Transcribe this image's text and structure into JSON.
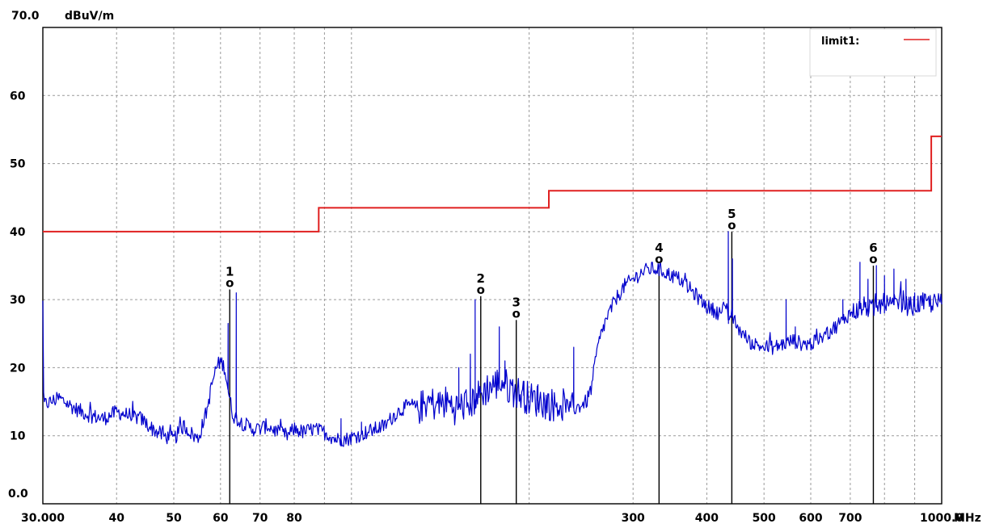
{
  "chart_data": {
    "type": "line",
    "x_scale": "log",
    "xlim": [
      30,
      1000
    ],
    "ylim": [
      0,
      70
    ],
    "xunit": "MHz",
    "yunit": "dBuV/m",
    "ymax_label": "70.0",
    "ymin_label": "0.0",
    "y_ticks": [
      "10",
      "20",
      "30",
      "40",
      "50",
      "60"
    ],
    "x_ticks": [
      "30.000",
      "40",
      "50",
      "60",
      "70",
      "80",
      "300",
      "400",
      "500",
      "600",
      "700",
      "1000.0"
    ],
    "grid": true,
    "legend": {
      "label": "limit1:",
      "position": "top-right",
      "color": "#e02020"
    },
    "colors": {
      "trace": "#0000cc",
      "limit": "#e02020",
      "grid": "#9a9a9a",
      "marker": "#000000"
    },
    "limit_line": {
      "name": "limit1",
      "points": [
        [
          30,
          40
        ],
        [
          88,
          40
        ],
        [
          88,
          43.5
        ],
        [
          216,
          43.5
        ],
        [
          216,
          46
        ],
        [
          960,
          46
        ],
        [
          960,
          54
        ],
        [
          1000,
          54
        ]
      ]
    },
    "trace": {
      "points": [
        [
          30,
          14.5
        ],
        [
          32,
          15.5
        ],
        [
          34,
          14
        ],
        [
          36,
          13
        ],
        [
          38,
          12.5
        ],
        [
          40,
          13.5
        ],
        [
          42,
          13
        ],
        [
          44,
          12.5
        ],
        [
          46,
          11
        ],
        [
          48,
          10
        ],
        [
          50,
          9.5
        ],
        [
          52,
          11.5
        ],
        [
          54,
          10
        ],
        [
          55,
          9.5
        ],
        [
          57,
          14
        ],
        [
          58,
          17.5
        ],
        [
          59,
          20
        ],
        [
          60,
          21
        ],
        [
          61,
          20
        ],
        [
          62,
          16
        ],
        [
          63,
          13
        ],
        [
          65,
          12
        ],
        [
          68,
          11
        ],
        [
          70,
          11
        ],
        [
          72,
          11.5
        ],
        [
          75,
          10.5
        ],
        [
          78,
          10
        ],
        [
          80,
          11
        ],
        [
          83,
          10.5
        ],
        [
          86,
          11
        ],
        [
          90,
          10.5
        ],
        [
          94,
          9.5
        ],
        [
          98,
          9.5
        ],
        [
          102,
          10
        ],
        [
          106,
          10.5
        ],
        [
          110,
          11
        ],
        [
          114,
          11.5
        ],
        [
          118,
          13
        ],
        [
          122,
          14
        ],
        [
          126,
          14.5
        ],
        [
          130,
          14
        ],
        [
          135,
          15
        ],
        [
          140,
          14.5
        ],
        [
          145,
          15
        ],
        [
          150,
          14
        ],
        [
          155,
          14.5
        ],
        [
          160,
          15
        ],
        [
          165,
          16
        ],
        [
          170,
          17
        ],
        [
          175,
          17.5
        ],
        [
          180,
          18
        ],
        [
          185,
          17
        ],
        [
          190,
          16.5
        ],
        [
          195,
          16
        ],
        [
          200,
          15.5
        ],
        [
          210,
          15
        ],
        [
          220,
          14.5
        ],
        [
          230,
          14.5
        ],
        [
          240,
          14
        ],
        [
          245,
          14.5
        ],
        [
          250,
          15
        ],
        [
          255,
          17
        ],
        [
          260,
          22
        ],
        [
          265,
          25
        ],
        [
          270,
          27
        ],
        [
          280,
          30
        ],
        [
          290,
          32
        ],
        [
          300,
          33
        ],
        [
          310,
          34
        ],
        [
          320,
          34.5
        ],
        [
          330,
          34.5
        ],
        [
          340,
          34
        ],
        [
          350,
          33.5
        ],
        [
          360,
          33
        ],
        [
          370,
          32
        ],
        [
          380,
          31
        ],
        [
          390,
          30
        ],
        [
          400,
          29
        ],
        [
          410,
          28.5
        ],
        [
          420,
          28
        ],
        [
          430,
          29
        ],
        [
          435,
          27
        ],
        [
          440,
          28
        ],
        [
          450,
          26
        ],
        [
          460,
          25
        ],
        [
          470,
          24
        ],
        [
          480,
          23.5
        ],
        [
          500,
          23
        ],
        [
          520,
          23
        ],
        [
          540,
          23.5
        ],
        [
          560,
          24
        ],
        [
          580,
          23.5
        ],
        [
          600,
          23.5
        ],
        [
          620,
          24
        ],
        [
          640,
          25
        ],
        [
          660,
          26
        ],
        [
          680,
          27
        ],
        [
          700,
          28
        ],
        [
          720,
          28.5
        ],
        [
          740,
          29
        ],
        [
          760,
          28.5
        ],
        [
          780,
          29
        ],
        [
          800,
          29.5
        ],
        [
          820,
          29
        ],
        [
          840,
          29.5
        ],
        [
          860,
          29.5
        ],
        [
          880,
          29
        ],
        [
          900,
          29
        ],
        [
          920,
          29.5
        ],
        [
          940,
          29.5
        ],
        [
          960,
          29.5
        ],
        [
          980,
          29.5
        ],
        [
          1000,
          29.5
        ]
      ],
      "spikes": [
        [
          61.8,
          26.5
        ],
        [
          63.8,
          31
        ],
        [
          96,
          12.5
        ],
        [
          104,
          12
        ],
        [
          152,
          20
        ],
        [
          159,
          22
        ],
        [
          162,
          30
        ],
        [
          178,
          26
        ],
        [
          182,
          21
        ],
        [
          196,
          18
        ],
        [
          207,
          17.5
        ],
        [
          238,
          23
        ],
        [
          332,
          34.5
        ],
        [
          435,
          40
        ],
        [
          442,
          36
        ],
        [
          545,
          30
        ],
        [
          565,
          26
        ],
        [
          680,
          30
        ],
        [
          727,
          35.5
        ],
        [
          750,
          33
        ],
        [
          775,
          35
        ],
        [
          800,
          33.5
        ],
        [
          830,
          34.5
        ],
        [
          870,
          33
        ],
        [
          900,
          31
        ]
      ]
    },
    "markers": [
      {
        "label": "1",
        "symbol": "o",
        "x": 62.2,
        "y": 31.5
      },
      {
        "label": "2",
        "symbol": "o",
        "x": 165.6,
        "y": 30.5
      },
      {
        "label": "3",
        "symbol": "o",
        "x": 190.2,
        "y": 27
      },
      {
        "label": "4",
        "symbol": "o",
        "x": 332.0,
        "y": 35
      },
      {
        "label": "5",
        "symbol": "o",
        "x": 441.0,
        "y": 40
      },
      {
        "label": "6",
        "symbol": "o",
        "x": 766.0,
        "y": 35
      }
    ]
  }
}
